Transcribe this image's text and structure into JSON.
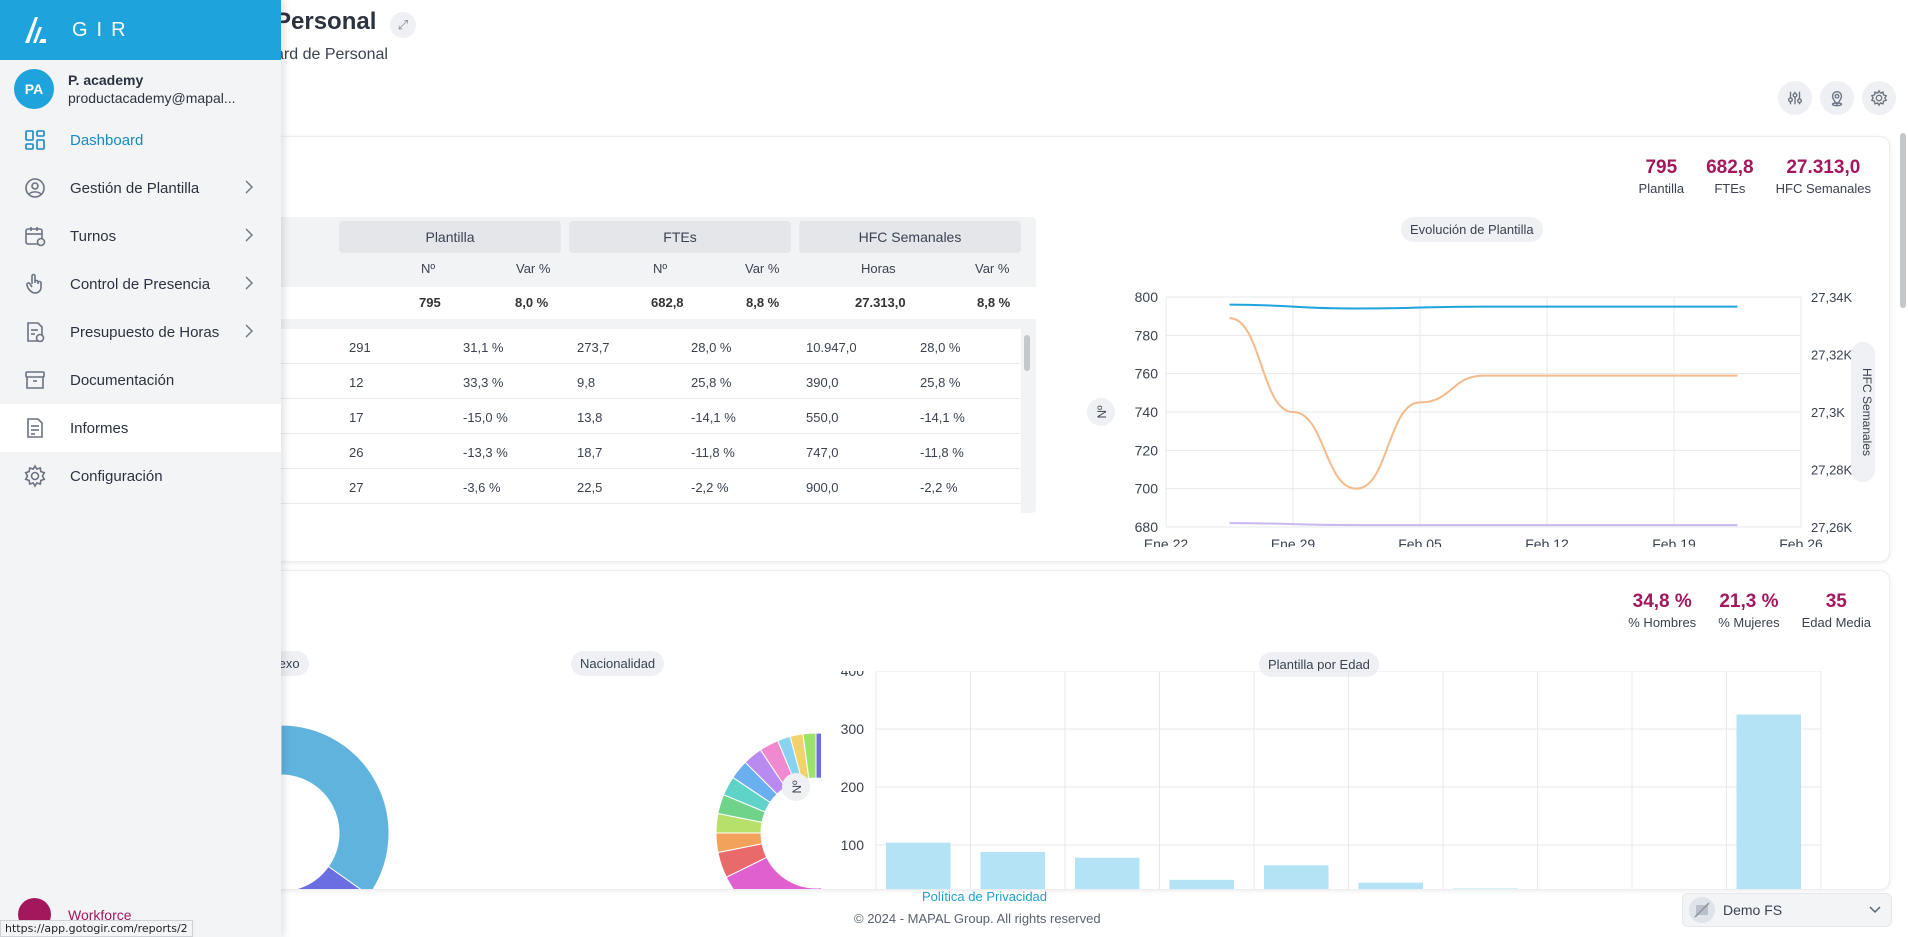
{
  "header": {
    "title": "Personal",
    "subtitle": "ard de Personal"
  },
  "sidebar": {
    "brand": "GIR",
    "user": {
      "initials": "PA",
      "name": "P. academy",
      "email": "productacademy@mapal..."
    },
    "items": [
      {
        "label": "Dashboard",
        "icon": "dashboard-icon",
        "active": true,
        "chevron": false
      },
      {
        "label": "Gestión de Plantilla",
        "icon": "user-circle-icon",
        "chevron": true
      },
      {
        "label": "Turnos",
        "icon": "calendar-icon",
        "chevron": true
      },
      {
        "label": "Control de Presencia",
        "icon": "hand-pointer-icon",
        "chevron": true
      },
      {
        "label": "Presupuesto de Horas",
        "icon": "budget-doc-icon",
        "chevron": true
      },
      {
        "label": "Documentación",
        "icon": "archive-icon",
        "chevron": false
      },
      {
        "label": "Informes",
        "icon": "report-icon",
        "chevron": false,
        "highlighted": true
      },
      {
        "label": "Configuración",
        "icon": "gear-icon",
        "chevron": false
      }
    ],
    "bottom_label": "Workforce"
  },
  "status_url": "https://app.gotogir.com/reports/2",
  "card1": {
    "kpis": [
      {
        "value": "795",
        "label": "Plantilla"
      },
      {
        "value": "682,8",
        "label": "FTEs"
      },
      {
        "value": "27.313,0",
        "label": "HFC Semanales"
      }
    ],
    "table": {
      "groups": [
        "Plantilla",
        "FTEs",
        "HFC Semanales"
      ],
      "subheaders": [
        "Nº",
        "Var %",
        "Nº",
        "Var %",
        "Horas",
        "Var %"
      ],
      "totals": [
        "795",
        "8,0 %",
        "682,8",
        "8,8 %",
        "27.313,0",
        "8,8 %"
      ],
      "rows": [
        [
          "291",
          "31,1 %",
          "273,7",
          "28,0 %",
          "10.947,0",
          "28,0 %"
        ],
        [
          "12",
          "33,3 %",
          "9,8",
          "25,8 %",
          "390,0",
          "25,8 %"
        ],
        [
          "17",
          "-15,0 %",
          "13,8",
          "-14,1 %",
          "550,0",
          "-14,1 %"
        ],
        [
          "26",
          "-13,3 %",
          "18,7",
          "-11,8 %",
          "747,0",
          "-11,8 %"
        ],
        [
          "27",
          "-3,6 %",
          "22,5",
          "-2,2 %",
          "900,0",
          "-2,2 %"
        ]
      ]
    },
    "chart_data": {
      "type": "line",
      "title": "Evolución de Plantilla",
      "x": [
        "Ene 22",
        "Ene 29",
        "Feb 05",
        "Feb 12",
        "Feb 19",
        "Feb 26"
      ],
      "ylabel": "Nº",
      "ylim": [
        680,
        800
      ],
      "yticks": [
        "800",
        "780",
        "760",
        "740",
        "720",
        "700",
        "680"
      ],
      "y2label": "HFC Semanales",
      "y2ticks": [
        "27,34K",
        "27,32K",
        "27,3K",
        "27,28K",
        "27,26K"
      ],
      "series": [
        {
          "color": "#1fa3dd",
          "points": [
            [
              0.5,
              796
            ],
            [
              1.5,
              794
            ],
            [
              2.5,
              795
            ],
            [
              3.5,
              795
            ],
            [
              4.5,
              795
            ]
          ]
        },
        {
          "color": "#f5b98a",
          "points": [
            [
              0.5,
              789
            ],
            [
              1.0,
              740
            ],
            [
              1.5,
              700
            ],
            [
              2.0,
              745
            ],
            [
              2.5,
              759
            ],
            [
              3.5,
              759
            ],
            [
              4.5,
              759
            ]
          ]
        },
        {
          "color": "#c8b8f0",
          "points": [
            [
              0.5,
              682
            ],
            [
              1.5,
              681
            ],
            [
              2.5,
              681
            ],
            [
              3.5,
              681
            ],
            [
              4.5,
              681
            ]
          ]
        }
      ],
      "more_label": "···"
    }
  },
  "card2": {
    "kpis": [
      {
        "value": "34,8 %",
        "label": "% Hombres"
      },
      {
        "value": "21,3 %",
        "label": "% Mujeres"
      },
      {
        "value": "35",
        "label": "Edad Media"
      }
    ],
    "pill_sexo": "Sexo",
    "pill_nacionalidad": "Nacionalidad",
    "pill_edad": "Plantilla por Edad",
    "chart_data": [
      {
        "type": "pie",
        "title": "Sexo",
        "slices": [
          {
            "value": 34.8,
            "color": "#5fb3dd"
          },
          {
            "value": 21.3,
            "color": "#6b6ee0"
          },
          {
            "value": 43.9,
            "color": "#9b59d6"
          }
        ]
      },
      {
        "type": "pie",
        "title": "Nacionalidad",
        "slices": [
          {
            "value": 30,
            "color": "#6b6ee0"
          },
          {
            "value": 35,
            "color": "#e060d0"
          },
          {
            "value": 4,
            "color": "#e86a6a"
          },
          {
            "value": 3,
            "color": "#f2a25a"
          },
          {
            "value": 3,
            "color": "#b7e06a"
          },
          {
            "value": 3,
            "color": "#6fd38a"
          },
          {
            "value": 3,
            "color": "#5fd3c8"
          },
          {
            "value": 3,
            "color": "#6ab0f0"
          },
          {
            "value": 3,
            "color": "#b98af0"
          },
          {
            "value": 3,
            "color": "#f08ad0"
          },
          {
            "value": 2,
            "color": "#8ad3f0"
          },
          {
            "value": 2,
            "color": "#f0d36a"
          },
          {
            "value": 2,
            "color": "#9be36a"
          }
        ]
      },
      {
        "type": "bar",
        "title": "Plantilla por Edad",
        "ylabel": "Nº",
        "ylim": [
          0,
          400
        ],
        "yticks": [
          "400",
          "300",
          "200",
          "100"
        ],
        "values": [
          104,
          88,
          78,
          40,
          65,
          35,
          25,
          20,
          10,
          325
        ],
        "color": "#b3e3f5"
      }
    ]
  },
  "footer": {
    "privacy": "Política de Privacidad",
    "copyright": "© 2024 - MAPAL Group. All rights reserved"
  },
  "env_select": {
    "value": "Demo FS"
  }
}
